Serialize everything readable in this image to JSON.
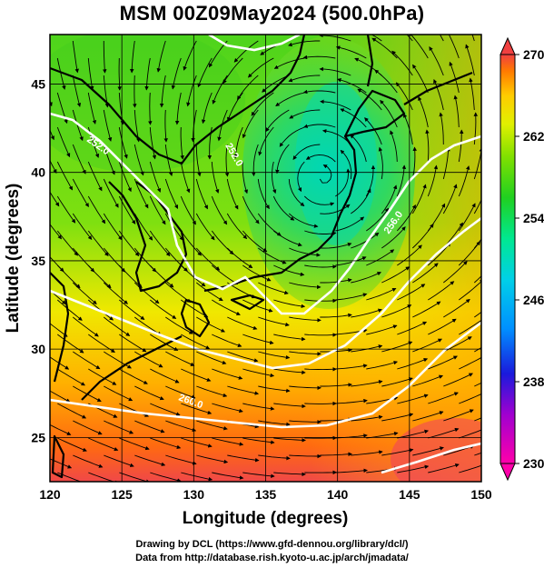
{
  "title": "MSM 00Z09May2024 (500.0hPa)",
  "axes": {
    "xlabel": "Longitude (degrees)",
    "ylabel": "Latitude  (degrees)",
    "xlim": [
      120,
      150
    ],
    "ylim": [
      22.5,
      47.8
    ],
    "xticks": [
      "120",
      "125",
      "130",
      "135",
      "140",
      "145",
      "150"
    ],
    "yticks": [
      "25",
      "30",
      "35",
      "40",
      "45"
    ]
  },
  "colorbar": {
    "min": 230,
    "max": 270,
    "ticks": [
      "270",
      "262",
      "254",
      "246",
      "238",
      "230"
    ],
    "colors": [
      "#ff00aa",
      "#a000d0",
      "#1a1adc",
      "#0090ff",
      "#00d0e8",
      "#00e890",
      "#20d020",
      "#80e000",
      "#e0f000",
      "#ffcc00",
      "#ff7a00",
      "#f04040"
    ]
  },
  "contours": {
    "labels": [
      "252.0",
      "252.0",
      "256.0",
      "260.0"
    ],
    "color": "#ffffff"
  },
  "credits": {
    "line1": "Drawing by DCL (https://www.gfd-dennou.org/library/dcl/)",
    "line2": "Data from http://database.rish.kyoto-u.ac.jp/arch/jmadata/"
  }
}
